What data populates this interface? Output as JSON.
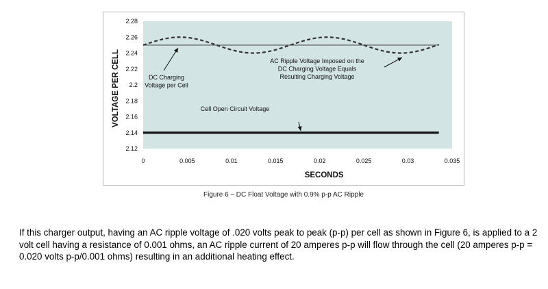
{
  "chart_data": {
    "type": "line",
    "title": "Figure 6 – DC Float Voltage with 0.9% p-p AC Ripple",
    "xlabel": "SECONDS",
    "ylabel": "VOLTAGE PER CELL",
    "xlim": [
      0,
      0.035
    ],
    "ylim": [
      2.12,
      2.28
    ],
    "grid": false,
    "x_ticks": [
      "0",
      "0.005",
      "0.01",
      "0.015",
      "0.02",
      "0.025",
      "0.03",
      "0.035"
    ],
    "y_ticks": [
      "2.28",
      "2.26",
      "2.24",
      "2.22",
      "2.2",
      "2.18",
      "2.16",
      "2.14",
      "2.12"
    ],
    "series": [
      {
        "name": "DC Charging Voltage per Cell",
        "style": "solid-thin",
        "x": [
          0,
          0.0335
        ],
        "y": [
          2.25,
          2.25
        ]
      },
      {
        "name": "AC Ripple Voltage Imposed on the DC Charging Voltage",
        "style": "dashed",
        "center": 2.25,
        "amplitude": 0.01,
        "period": 0.01667,
        "x_range": [
          0,
          0.0335
        ]
      },
      {
        "name": "Cell Open Circuit Voltage",
        "style": "solid-thick",
        "x": [
          0,
          0.0335
        ],
        "y": [
          2.14,
          2.14
        ]
      }
    ],
    "annotations": [
      {
        "id": "dc",
        "lines": [
          "DC Charging",
          "Voltage per Cell"
        ]
      },
      {
        "id": "ac",
        "lines": [
          "AC Ripple Voltage Imposed on the",
          "DC Charging Voltage Equals",
          "Resulting Charging Voltage"
        ]
      },
      {
        "id": "oc",
        "lines": [
          "Cell Open Circuit Voltage"
        ]
      }
    ]
  },
  "body_text": "If this charger output, having an AC ripple voltage of .020 volts peak to peak (p-p) per cell as shown in Figure 6, is applied to a 2 volt cell having a resistance of 0.001 ohms, an AC ripple current of 20 amperes p-p will flow through the cell (20 amperes p-p = 0.020 volts p-p/0.001 ohms) resulting in an additional heating effect.",
  "colors": {
    "plot_bg": "#d3e4e4",
    "line": "#222222",
    "ripple": "#333333"
  }
}
